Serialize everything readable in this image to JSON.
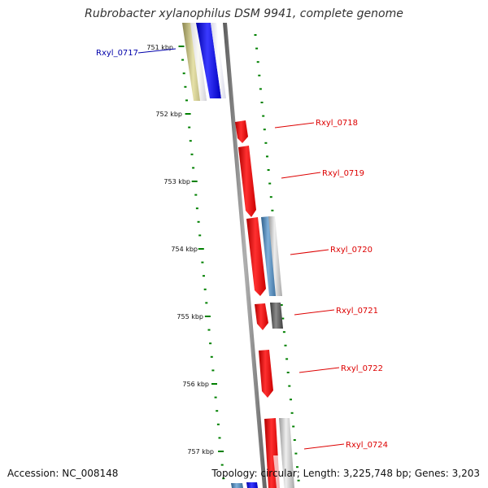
{
  "title": "Rubrobacter xylanophilus DSM 9941, complete genome",
  "footer": {
    "accession": "Accession: NC_008148",
    "summary": "Topology: circular; Length: 3,225,748 bp; Genes: 3,203"
  },
  "kbp_labels": [
    "751 kbp",
    "752 kbp",
    "753 kbp",
    "754 kbp",
    "755 kbp",
    "756 kbp",
    "757 kbp"
  ],
  "genes": [
    {
      "label": "Rxyl_0717",
      "color": "#0000aa"
    },
    {
      "label": "Rxyl_0718",
      "color": "#dd0000"
    },
    {
      "label": "Rxyl_0719",
      "color": "#dd0000"
    },
    {
      "label": "Rxyl_0720",
      "color": "#dd0000"
    },
    {
      "label": "Rxyl_0721",
      "color": "#dd0000"
    },
    {
      "label": "Rxyl_0722",
      "color": "#dd0000"
    },
    {
      "label": "Rxyl_0724",
      "color": "#dd0000"
    }
  ],
  "colors": {
    "tick": "#008000",
    "backbone": "#808080",
    "cds_reverse": "#ff0000",
    "cds_forward_blue": "#0000ff",
    "olive": "#bdb76b",
    "steel": "#4682b4",
    "silver": "#c0c0c0",
    "dark_gray": "#505050"
  }
}
